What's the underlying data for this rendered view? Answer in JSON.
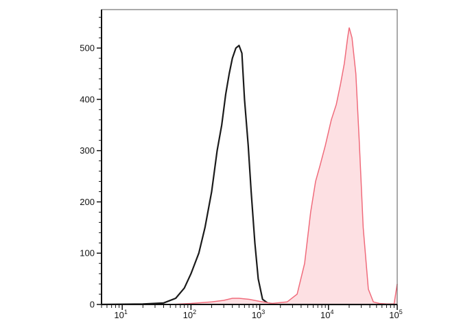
{
  "chart_data": {
    "type": "area",
    "x_scale": "log",
    "xlim": [
      5,
      100000
    ],
    "ylim": [
      0,
      575
    ],
    "grid": false,
    "y_ticks": [
      {
        "value": 0,
        "label": "0"
      },
      {
        "value": 100,
        "label": "100"
      },
      {
        "value": 200,
        "label": "200"
      },
      {
        "value": 300,
        "label": "300"
      },
      {
        "value": 400,
        "label": "400"
      },
      {
        "value": 500,
        "label": "500"
      }
    ],
    "x_ticks": [
      {
        "value": 10,
        "base": "10",
        "exp": "1"
      },
      {
        "value": 100,
        "base": "10",
        "exp": "2"
      },
      {
        "value": 1000,
        "base": "10",
        "exp": "3"
      },
      {
        "value": 10000,
        "base": "10",
        "exp": "4"
      },
      {
        "value": 100000,
        "base": "10",
        "exp": "5"
      }
    ],
    "series": [
      {
        "style": "line",
        "color": "#1a1a1a",
        "x": [
          5,
          20,
          40,
          60,
          80,
          100,
          130,
          160,
          200,
          240,
          280,
          320,
          360,
          400,
          450,
          500,
          550,
          600,
          680,
          750,
          850,
          950,
          1100,
          1300,
          1600,
          2000,
          3000,
          5000,
          10000,
          30000,
          100000
        ],
        "y": [
          0,
          1,
          3,
          12,
          32,
          60,
          100,
          150,
          220,
          300,
          350,
          410,
          450,
          480,
          500,
          505,
          490,
          400,
          310,
          220,
          120,
          50,
          10,
          3,
          1,
          0,
          0,
          0,
          0,
          0,
          0
        ]
      },
      {
        "style": "filled",
        "color": "#f06b7b",
        "fill": "#fde0e3",
        "x": [
          5,
          50,
          100,
          200,
          300,
          400,
          500,
          700,
          1000,
          1500,
          2500,
          3500,
          4500,
          5500,
          6500,
          7500,
          9000,
          11000,
          13000,
          15000,
          17000,
          19000,
          20000,
          22000,
          25000,
          28000,
          32000,
          38000,
          45000,
          55000,
          70000,
          90000,
          100000
        ],
        "y": [
          0,
          0,
          2,
          5,
          8,
          12,
          12,
          10,
          6,
          2,
          5,
          20,
          80,
          180,
          240,
          270,
          310,
          360,
          390,
          430,
          470,
          520,
          540,
          520,
          450,
          320,
          150,
          30,
          5,
          2,
          1,
          1,
          40
        ]
      }
    ]
  }
}
